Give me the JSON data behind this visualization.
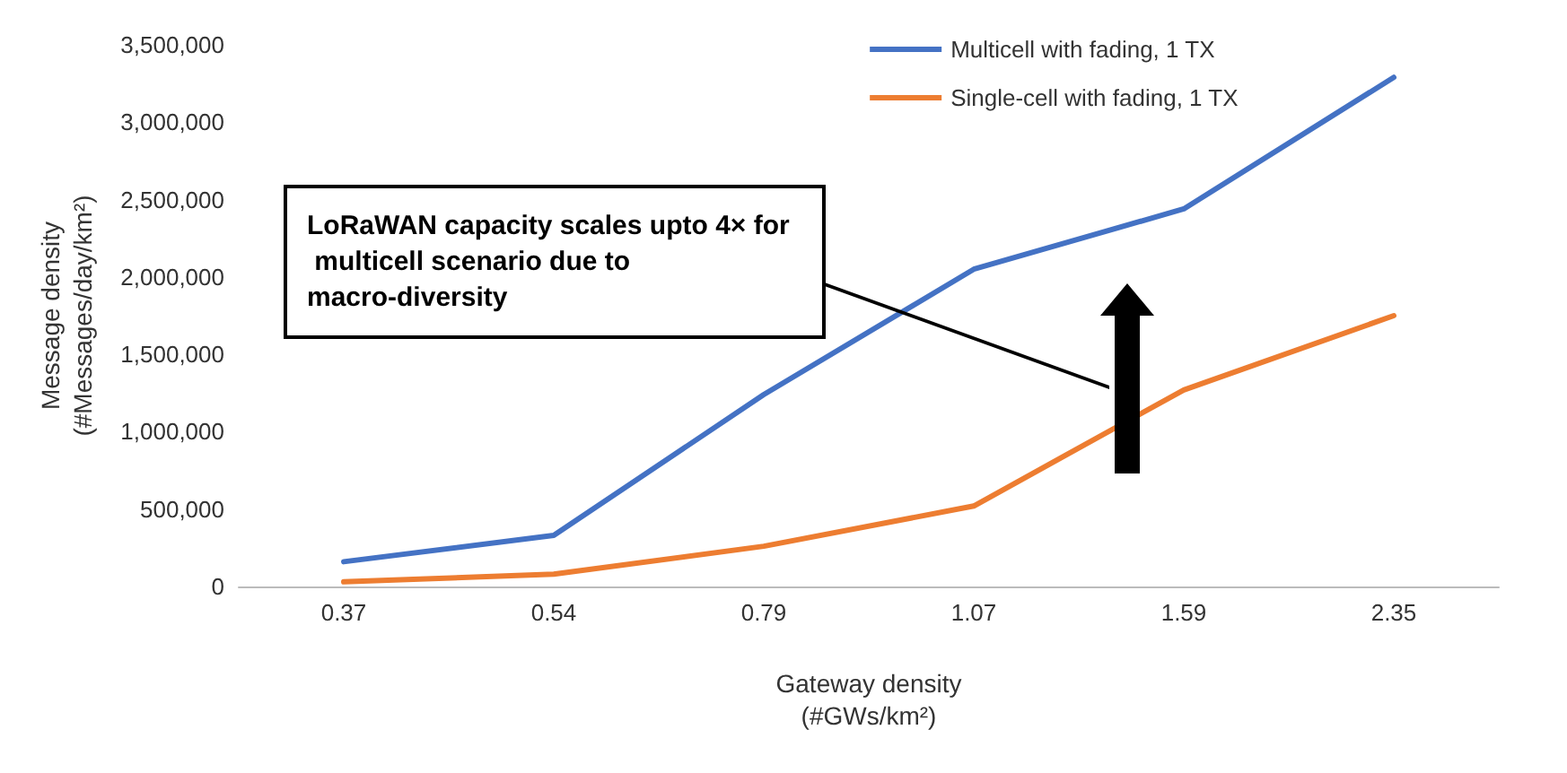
{
  "chart_data": {
    "type": "line",
    "xlabel": "Gateway density\n(#GWs/km²)",
    "ylabel": "Message density\n(#Messages/day/km²)",
    "categories": [
      "0.37",
      "0.54",
      "0.79",
      "1.07",
      "1.59",
      "2.35"
    ],
    "series": [
      {
        "name": "Multicell with fading, 1 TX",
        "color": "#4472c4",
        "values": [
          160000,
          330000,
          1240000,
          2050000,
          2440000,
          3290000
        ]
      },
      {
        "name": "Single-cell with fading, 1 TX",
        "color": "#ed7d31",
        "values": [
          30000,
          80000,
          260000,
          520000,
          1270000,
          1750000
        ]
      }
    ],
    "ylim": [
      0,
      3500000
    ],
    "yticks": [
      0,
      {
        "value": 500000,
        "label": "500,000"
      },
      {
        "value": 1000000,
        "label": "1,000,000"
      },
      {
        "value": 1500000,
        "label": "1,500,000"
      },
      {
        "value": 2000000,
        "label": "2,000,000"
      },
      {
        "value": 2500000,
        "label": "2,500,000"
      },
      {
        "value": 3000000,
        "label": "3,000,000"
      },
      {
        "value": 3500000,
        "label": "3,500,000"
      }
    ],
    "grid": false,
    "legend": "top right",
    "marker": "none",
    "line_style": "solid",
    "annotations": [
      "LoRaWAN capacity scales upto 4× for multicell scenario due to macro-diversity"
    ]
  }
}
